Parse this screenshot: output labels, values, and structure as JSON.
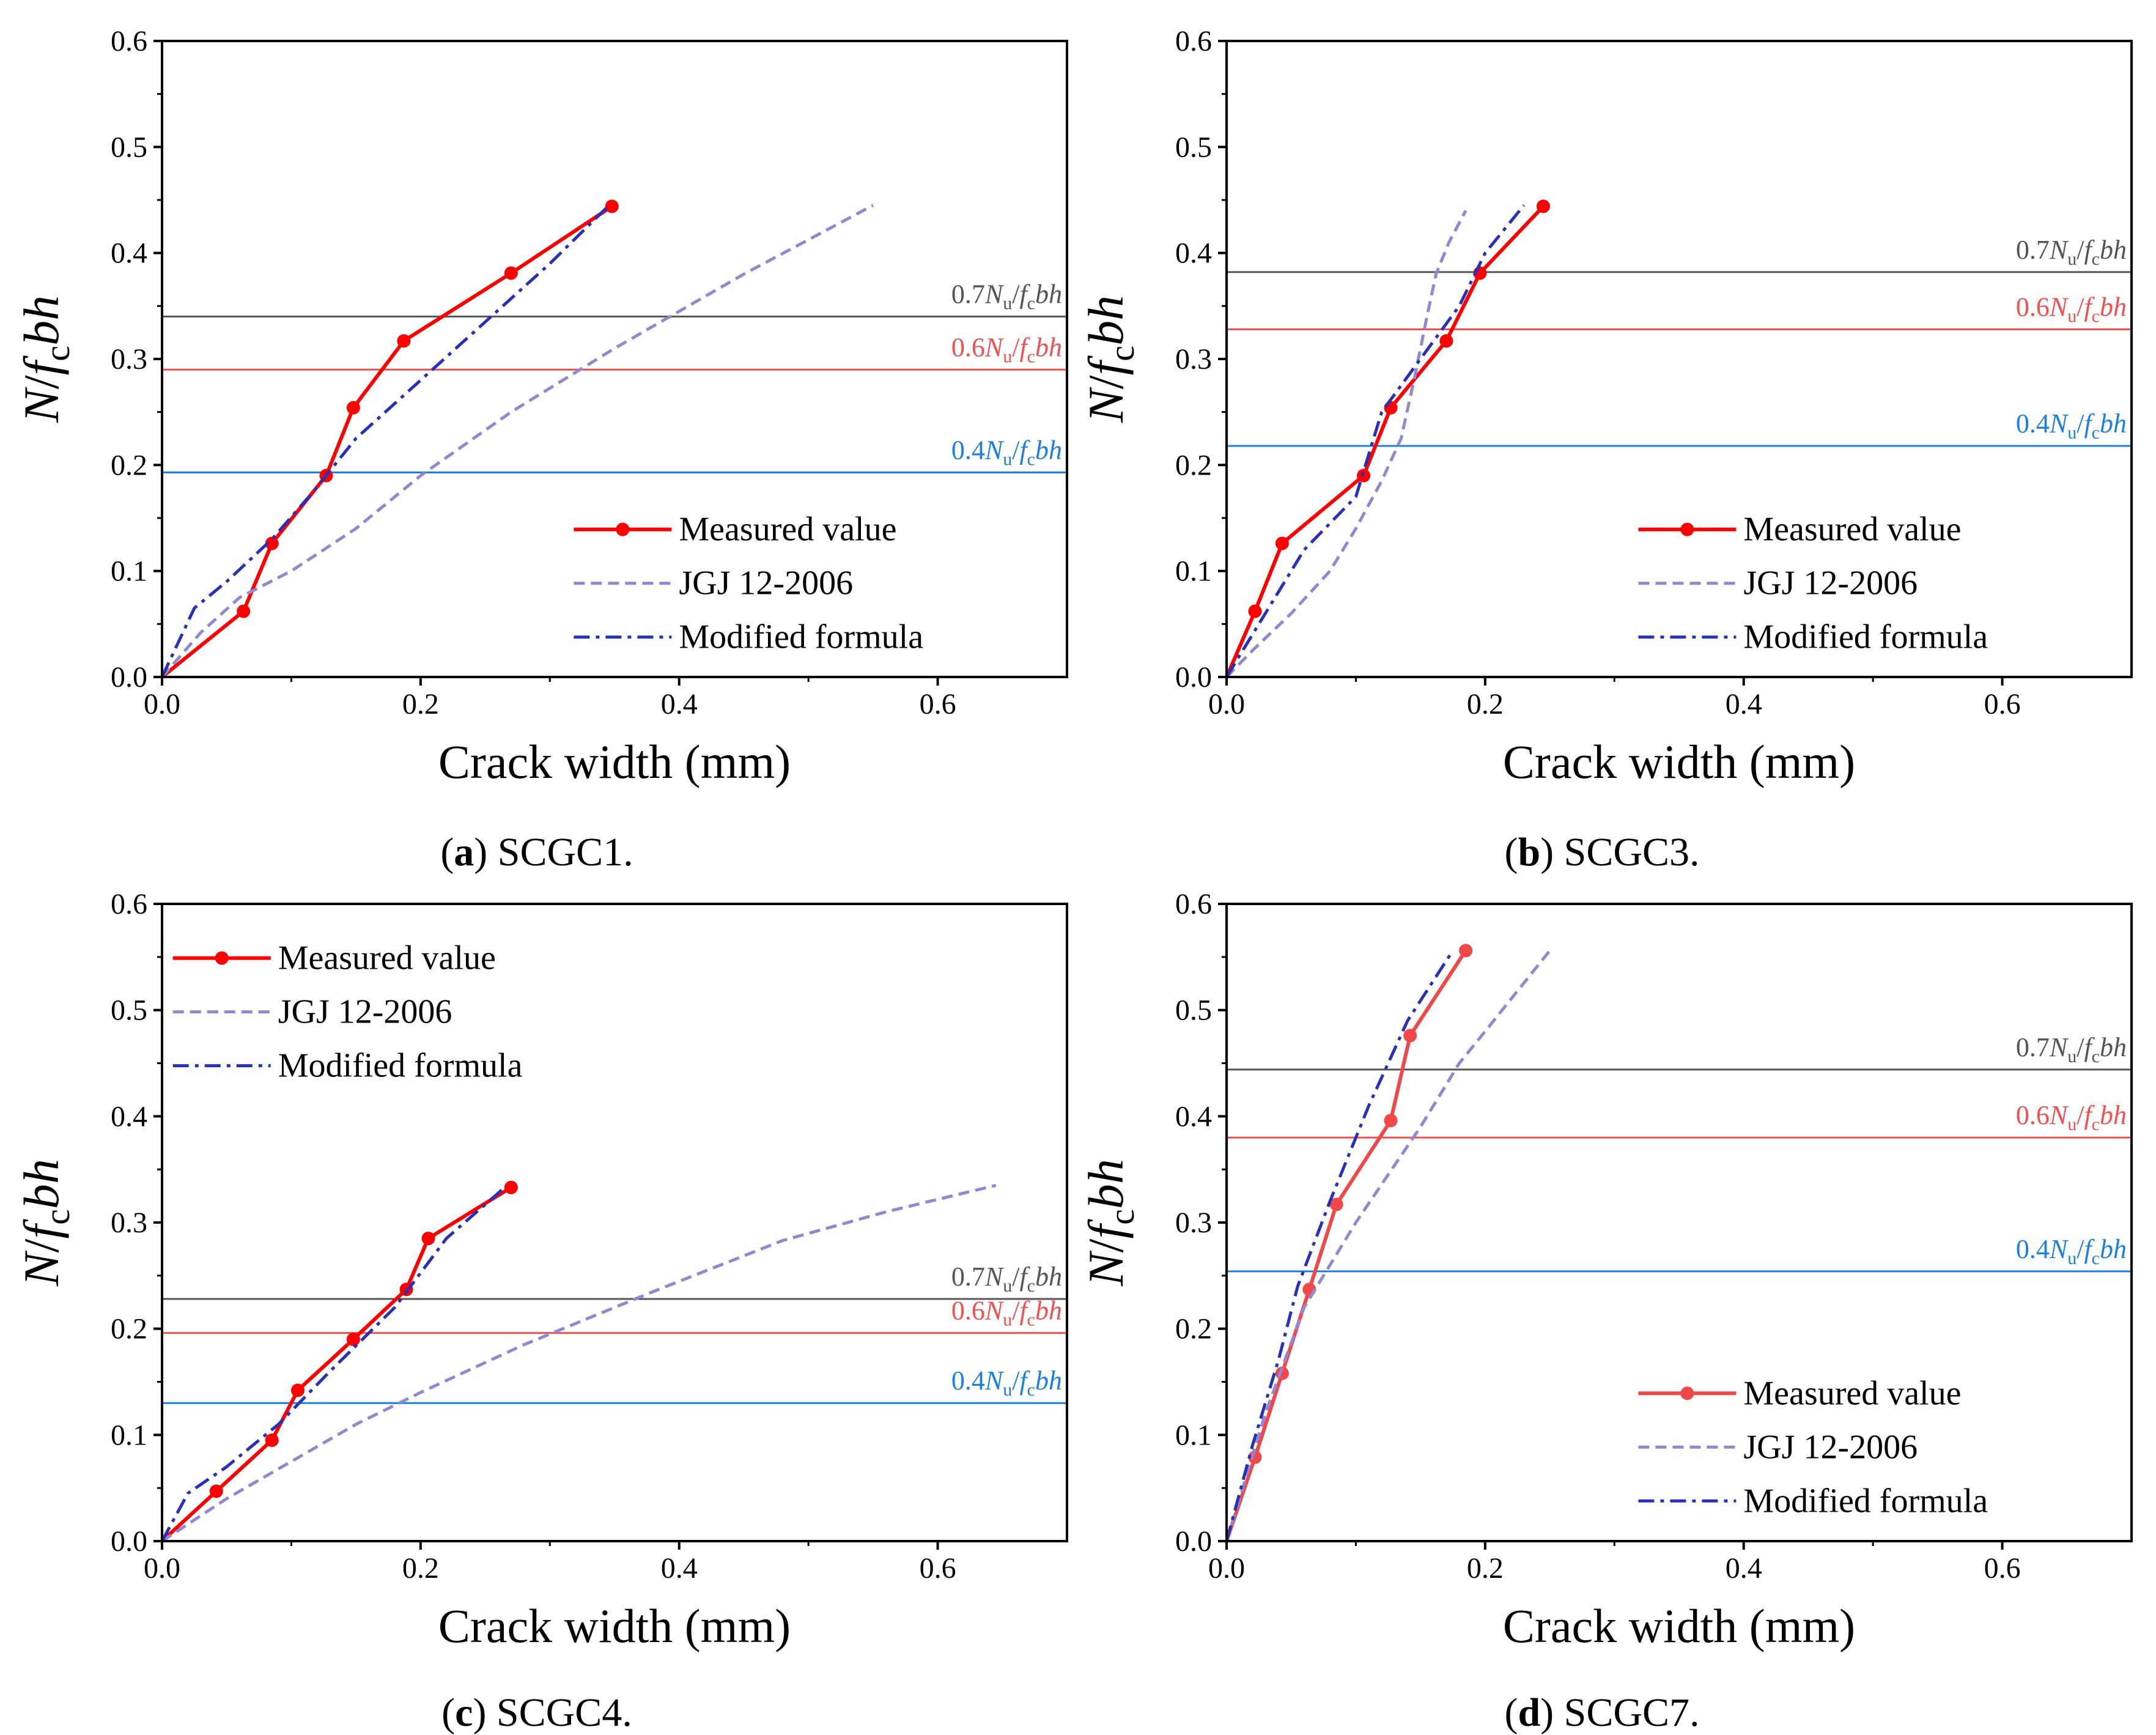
{
  "figure": {
    "colors": {
      "measured": "#ff0000",
      "measured_d": "#f04848",
      "jgj": "#9088d0",
      "modified": "#2830b8",
      "line07": "#555555",
      "line06": "#f05050",
      "line04": "#1c80e0",
      "axis": "#000000"
    },
    "ref_label_parts": {
      "c07": "0.7",
      "c06": "0.6",
      "c04": "0.4",
      "N": "N",
      "u": "u",
      "slash": "/",
      "f": "f",
      "c": "c",
      "bh": "bh"
    },
    "ylabel_parts": {
      "N": "N",
      "slash": "/",
      "f": "f",
      "c": "c",
      "bh": "bh"
    }
  },
  "chart_data": [
    {
      "type": "line",
      "panel": "a",
      "caption_letter": "a",
      "caption_text": "SCGC1.",
      "xlabel": "Crack width (mm)",
      "ylabel": "N/fcbh",
      "xlim": [
        0,
        0.7
      ],
      "ylim": [
        0,
        0.6
      ],
      "xticks": [
        "0.0",
        "0.2",
        "0.4",
        "0.6"
      ],
      "yticks": [
        "0.0",
        "0.1",
        "0.2",
        "0.3",
        "0.4",
        "0.5",
        "0.6"
      ],
      "legend_position": "lower-right",
      "legend": [
        "Measured value",
        "JGJ 12-2006",
        "Modified formula"
      ],
      "reference_lines": [
        {
          "name": "0.7Nu/fcbh",
          "coef": "0.7",
          "y": 0.34,
          "color_key": "line07"
        },
        {
          "name": "0.6Nu/fcbh",
          "coef": "0.6",
          "y": 0.29,
          "color_key": "line06"
        },
        {
          "name": "0.4Nu/fcbh",
          "coef": "0.4",
          "y": 0.193,
          "color_key": "line04"
        }
      ],
      "series": [
        {
          "name": "Measured value",
          "style": "solid-marker",
          "color_key": "measured",
          "x": [
            0,
            0.063,
            0.085,
            0.127,
            0.148,
            0.187,
            0.27,
            0.348
          ],
          "y": [
            0,
            0.062,
            0.126,
            0.19,
            0.254,
            0.317,
            0.381,
            0.444
          ]
        },
        {
          "name": "JGJ 12-2006",
          "style": "dash",
          "color_key": "jgj",
          "x": [
            0,
            0.03,
            0.06,
            0.1,
            0.15,
            0.2,
            0.27,
            0.35,
            0.45,
            0.55
          ],
          "y": [
            0,
            0.042,
            0.075,
            0.1,
            0.14,
            0.19,
            0.25,
            0.31,
            0.38,
            0.445
          ]
        },
        {
          "name": "Modified formula",
          "style": "dashdot",
          "color_key": "modified",
          "x": [
            0,
            0.025,
            0.05,
            0.085,
            0.115,
            0.15,
            0.2,
            0.25,
            0.3,
            0.345
          ],
          "y": [
            0,
            0.065,
            0.09,
            0.13,
            0.172,
            0.225,
            0.28,
            0.335,
            0.39,
            0.444
          ]
        }
      ]
    },
    {
      "type": "line",
      "panel": "b",
      "caption_letter": "b",
      "caption_text": "SCGC3.",
      "xlabel": "Crack width (mm)",
      "ylabel": "N/fcbh",
      "xlim": [
        0,
        0.7
      ],
      "ylim": [
        0,
        0.6
      ],
      "xticks": [
        "0.0",
        "0.2",
        "0.4",
        "0.6"
      ],
      "yticks": [
        "0.0",
        "0.1",
        "0.2",
        "0.3",
        "0.4",
        "0.5",
        "0.6"
      ],
      "legend_position": "lower-right",
      "legend": [
        "Measured value",
        "JGJ 12-2006",
        "Modified formula"
      ],
      "reference_lines": [
        {
          "name": "0.7Nu/fcbh",
          "coef": "0.7",
          "y": 0.382,
          "color_key": "line07"
        },
        {
          "name": "0.6Nu/fcbh",
          "coef": "0.6",
          "y": 0.328,
          "color_key": "line06"
        },
        {
          "name": "0.4Nu/fcbh",
          "coef": "0.4",
          "y": 0.218,
          "color_key": "line04"
        }
      ],
      "series": [
        {
          "name": "Measured value",
          "style": "solid-marker",
          "color_key": "measured",
          "x": [
            0,
            0.022,
            0.043,
            0.106,
            0.127,
            0.17,
            0.196,
            0.245
          ],
          "y": [
            0,
            0.062,
            0.126,
            0.19,
            0.254,
            0.317,
            0.381,
            0.444
          ]
        },
        {
          "name": "JGJ 12-2006",
          "style": "dash",
          "color_key": "jgj",
          "x": [
            0,
            0.02,
            0.05,
            0.08,
            0.1,
            0.12,
            0.135,
            0.145,
            0.155,
            0.162,
            0.172,
            0.185
          ],
          "y": [
            0,
            0.025,
            0.06,
            0.1,
            0.14,
            0.185,
            0.225,
            0.28,
            0.34,
            0.38,
            0.41,
            0.44
          ]
        },
        {
          "name": "Modified formula",
          "style": "dashdot",
          "color_key": "modified",
          "x": [
            0,
            0.03,
            0.06,
            0.1,
            0.12,
            0.15,
            0.18,
            0.2,
            0.23
          ],
          "y": [
            0,
            0.06,
            0.12,
            0.17,
            0.25,
            0.3,
            0.35,
            0.4,
            0.445
          ]
        }
      ]
    },
    {
      "type": "line",
      "panel": "c",
      "caption_letter": "c",
      "caption_text": "SCGC4.",
      "xlabel": "Crack width (mm)",
      "ylabel": "N/fcbh",
      "xlim": [
        0,
        0.7
      ],
      "ylim": [
        0,
        0.6
      ],
      "xticks": [
        "0.0",
        "0.2",
        "0.4",
        "0.6"
      ],
      "yticks": [
        "0.0",
        "0.1",
        "0.2",
        "0.3",
        "0.4",
        "0.5",
        "0.6"
      ],
      "legend_position": "upper-left",
      "legend": [
        "Measured value",
        "JGJ 12-2006",
        "Modified formula"
      ],
      "reference_lines": [
        {
          "name": "0.7Nu/fcbh",
          "coef": "0.7",
          "y": 0.228,
          "color_key": "line07"
        },
        {
          "name": "0.6Nu/fcbh",
          "coef": "0.6",
          "y": 0.196,
          "color_key": "line06"
        },
        {
          "name": "0.4Nu/fcbh",
          "coef": "0.4",
          "y": 0.13,
          "color_key": "line04"
        }
      ],
      "series": [
        {
          "name": "Measured value",
          "style": "solid-marker",
          "color_key": "measured",
          "x": [
            0,
            0.042,
            0.085,
            0.105,
            0.148,
            0.189,
            0.206,
            0.27
          ],
          "y": [
            0,
            0.047,
            0.095,
            0.142,
            0.19,
            0.237,
            0.285,
            0.333
          ]
        },
        {
          "name": "JGJ 12-2006",
          "style": "dash",
          "color_key": "jgj",
          "x": [
            0,
            0.05,
            0.1,
            0.15,
            0.2,
            0.28,
            0.38,
            0.48,
            0.56,
            0.645
          ],
          "y": [
            0,
            0.04,
            0.075,
            0.11,
            0.14,
            0.185,
            0.235,
            0.283,
            0.31,
            0.335
          ]
        },
        {
          "name": "Modified formula",
          "style": "dashdot",
          "color_key": "modified",
          "x": [
            0,
            0.02,
            0.05,
            0.09,
            0.13,
            0.18,
            0.22,
            0.265
          ],
          "y": [
            0,
            0.045,
            0.07,
            0.11,
            0.16,
            0.22,
            0.285,
            0.333
          ]
        }
      ]
    },
    {
      "type": "line",
      "panel": "d",
      "caption_letter": "d",
      "caption_text": "SCGC7.",
      "xlabel": "Crack width (mm)",
      "ylabel": "N/fcbh",
      "xlim": [
        0,
        0.7
      ],
      "ylim": [
        0,
        0.6
      ],
      "xticks": [
        "0.0",
        "0.2",
        "0.4",
        "0.6"
      ],
      "yticks": [
        "0.0",
        "0.1",
        "0.2",
        "0.3",
        "0.4",
        "0.5",
        "0.6"
      ],
      "legend_position": "lower-right",
      "legend": [
        "Measured value",
        "JGJ 12-2006",
        "Modified formula"
      ],
      "reference_lines": [
        {
          "name": "0.7Nu/fcbh",
          "coef": "0.7",
          "y": 0.444,
          "color_key": "line07"
        },
        {
          "name": "0.6Nu/fcbh",
          "coef": "0.6",
          "y": 0.38,
          "color_key": "line06"
        },
        {
          "name": "0.4Nu/fcbh",
          "coef": "0.4",
          "y": 0.254,
          "color_key": "line04"
        }
      ],
      "series": [
        {
          "name": "Measured value",
          "style": "solid-marker",
          "color_key": "measured_d",
          "x": [
            0,
            0.022,
            0.043,
            0.064,
            0.085,
            0.127,
            0.142,
            0.185
          ],
          "y": [
            0,
            0.079,
            0.158,
            0.237,
            0.317,
            0.396,
            0.476,
            0.556
          ]
        },
        {
          "name": "JGJ 12-2006",
          "style": "dash",
          "color_key": "jgj",
          "x": [
            0,
            0.03,
            0.06,
            0.1,
            0.15,
            0.18,
            0.2,
            0.25
          ],
          "y": [
            0,
            0.12,
            0.22,
            0.3,
            0.39,
            0.45,
            0.48,
            0.556
          ]
        },
        {
          "name": "Modified formula",
          "style": "dashdot",
          "color_key": "modified",
          "x": [
            0,
            0.02,
            0.04,
            0.055,
            0.08,
            0.11,
            0.14,
            0.175
          ],
          "y": [
            0,
            0.09,
            0.17,
            0.24,
            0.32,
            0.41,
            0.49,
            0.556
          ]
        }
      ]
    }
  ]
}
